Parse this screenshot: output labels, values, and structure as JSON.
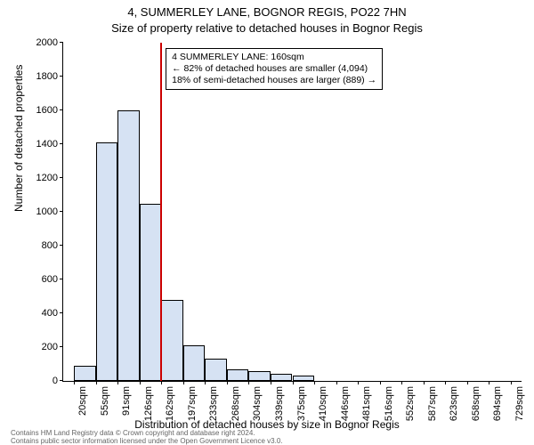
{
  "title_line1": "4, SUMMERLEY LANE, BOGNOR REGIS, PO22 7HN",
  "title_line2": "Size of property relative to detached houses in Bognor Regis",
  "ylabel": "Number of detached properties",
  "xlabel": "Distribution of detached houses by size in Bognor Regis",
  "footer_line1": "Contains HM Land Registry data © Crown copyright and database right 2024.",
  "footer_line2": "Contains public sector information licensed under the Open Government Licence v3.0.",
  "chart": {
    "type": "histogram",
    "ylim": [
      0,
      2000
    ],
    "ytick_step": 200,
    "bar_fill": "#d6e2f3",
    "bar_stroke": "#000000",
    "background": "#ffffff",
    "marker_color": "#cc0000",
    "marker_x_category": "162sqm",
    "categories": [
      "20sqm",
      "55sqm",
      "91sqm",
      "126sqm",
      "162sqm",
      "197sqm",
      "233sqm",
      "268sqm",
      "304sqm",
      "339sqm",
      "375sqm",
      "410sqm",
      "446sqm",
      "481sqm",
      "516sqm",
      "552sqm",
      "587sqm",
      "623sqm",
      "658sqm",
      "694sqm",
      "729sqm"
    ],
    "bar_count": 20,
    "values": [
      90,
      1410,
      1600,
      1050,
      480,
      210,
      130,
      70,
      60,
      40,
      30,
      0,
      0,
      0,
      0,
      0,
      0,
      0,
      0,
      0
    ],
    "axis_fontsize": 11,
    "label_fontsize": 12,
    "title_fontsize": 13
  },
  "annotation": {
    "line1": "4 SUMMERLEY LANE: 160sqm",
    "line2": "← 82% of detached houses are smaller (4,094)",
    "line3": "18% of semi-detached houses are larger (889) →"
  }
}
